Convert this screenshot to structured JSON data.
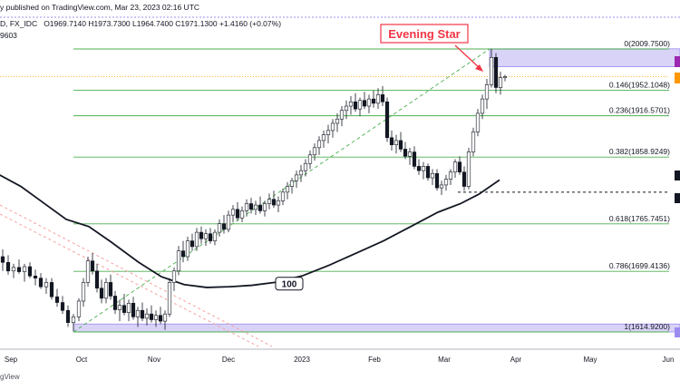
{
  "header": {
    "published": "y published on TradingView.com, Mar 23, 2023 02:16 UTC",
    "symbol": "D, FX_IDC",
    "ohlc": "O1969.7140  H1973.7300  L1964.7400  C1971.1300  +1.4160 (+0.07%)",
    "sub_value": "9603"
  },
  "footer": {
    "brand": "gView"
  },
  "annotations": {
    "pattern_label": "Evening Star",
    "ma_label": "100"
  },
  "colors": {
    "up": "#26a69a",
    "down": "#ef5350",
    "candle_body_up": "#ffffff",
    "candle_outline": "#131722",
    "fib_line": "#4caf50",
    "zone_fill": "#d9d3f7",
    "zone_edge": "#9c8cf0",
    "label_red": "#f23645",
    "ma": "#131722",
    "trend_red": "#f7a1a1"
  },
  "chart_data": {
    "type": "candlestick",
    "title": "",
    "xlabel": "",
    "ylabel": "",
    "x_ticks": [
      "Sep",
      "Oct",
      "Nov",
      "Dec",
      "2023",
      "Feb",
      "Mar",
      "Apr",
      "May",
      "Jun"
    ],
    "ylim": [
      1595,
      2025
    ],
    "fib_levels": [
      {
        "label": "0(2009.7500)",
        "value": 2009.75
      },
      {
        "label": "0.146(1952.1048)",
        "value": 1952.1048
      },
      {
        "label": "0.236(1916.5701)",
        "value": 1916.5701
      },
      {
        "label": "0.382(1858.9249)",
        "value": 1858.9249
      },
      {
        "label": "0.618(1765.7451)",
        "value": 1765.7451
      },
      {
        "label": "0.786(1699.4136)",
        "value": 1699.4136
      },
      {
        "label": "1(1614.9200)",
        "value": 1614.92
      }
    ],
    "support_level": 1810,
    "resistance_zone": [
      1985,
      2010
    ],
    "support_zone": [
      1614.92,
      1626
    ],
    "sma_100": [
      [
        -5,
        1835
      ],
      [
        20,
        1818
      ],
      [
        45,
        1795
      ],
      [
        70,
        1772
      ],
      [
        95,
        1762
      ],
      [
        120,
        1740
      ],
      [
        150,
        1712
      ],
      [
        175,
        1692
      ],
      [
        200,
        1681
      ],
      [
        225,
        1677
      ],
      [
        250,
        1678
      ],
      [
        275,
        1680
      ],
      [
        300,
        1684
      ],
      [
        330,
        1693
      ],
      [
        360,
        1708
      ],
      [
        390,
        1725
      ],
      [
        420,
        1742
      ],
      [
        450,
        1762
      ],
      [
        480,
        1782
      ],
      [
        505,
        1794
      ],
      [
        525,
        1807
      ],
      [
        548,
        1827
      ]
    ],
    "candles": [
      {
        "x": 0,
        "o": 1720,
        "h": 1730,
        "l": 1700,
        "c": 1712
      },
      {
        "x": 6,
        "o": 1712,
        "h": 1722,
        "l": 1695,
        "c": 1700
      },
      {
        "x": 12,
        "o": 1700,
        "h": 1710,
        "l": 1690,
        "c": 1705
      },
      {
        "x": 18,
        "o": 1705,
        "h": 1716,
        "l": 1696,
        "c": 1699
      },
      {
        "x": 24,
        "o": 1699,
        "h": 1710,
        "l": 1685,
        "c": 1706
      },
      {
        "x": 30,
        "o": 1706,
        "h": 1712,
        "l": 1690,
        "c": 1693
      },
      {
        "x": 36,
        "o": 1693,
        "h": 1702,
        "l": 1680,
        "c": 1690
      },
      {
        "x": 42,
        "o": 1690,
        "h": 1697,
        "l": 1675,
        "c": 1678
      },
      {
        "x": 48,
        "o": 1678,
        "h": 1690,
        "l": 1668,
        "c": 1684
      },
      {
        "x": 54,
        "o": 1684,
        "h": 1690,
        "l": 1660,
        "c": 1664
      },
      {
        "x": 60,
        "o": 1664,
        "h": 1675,
        "l": 1650,
        "c": 1656
      },
      {
        "x": 66,
        "o": 1656,
        "h": 1665,
        "l": 1640,
        "c": 1645
      },
      {
        "x": 72,
        "o": 1645,
        "h": 1652,
        "l": 1622,
        "c": 1628
      },
      {
        "x": 78,
        "o": 1628,
        "h": 1640,
        "l": 1616,
        "c": 1636
      },
      {
        "x": 84,
        "o": 1636,
        "h": 1662,
        "l": 1630,
        "c": 1658
      },
      {
        "x": 89,
        "o": 1658,
        "h": 1690,
        "l": 1650,
        "c": 1684
      },
      {
        "x": 94,
        "o": 1684,
        "h": 1720,
        "l": 1678,
        "c": 1714
      },
      {
        "x": 99,
        "o": 1714,
        "h": 1725,
        "l": 1695,
        "c": 1700
      },
      {
        "x": 104,
        "o": 1700,
        "h": 1710,
        "l": 1670,
        "c": 1676
      },
      {
        "x": 109,
        "o": 1676,
        "h": 1688,
        "l": 1655,
        "c": 1662
      },
      {
        "x": 114,
        "o": 1662,
        "h": 1690,
        "l": 1655,
        "c": 1684
      },
      {
        "x": 119,
        "o": 1684,
        "h": 1695,
        "l": 1660,
        "c": 1665
      },
      {
        "x": 124,
        "o": 1665,
        "h": 1672,
        "l": 1640,
        "c": 1646
      },
      {
        "x": 129,
        "o": 1646,
        "h": 1660,
        "l": 1630,
        "c": 1652
      },
      {
        "x": 134,
        "o": 1652,
        "h": 1668,
        "l": 1638,
        "c": 1642
      },
      {
        "x": 139,
        "o": 1642,
        "h": 1660,
        "l": 1630,
        "c": 1655
      },
      {
        "x": 144,
        "o": 1655,
        "h": 1664,
        "l": 1632,
        "c": 1636
      },
      {
        "x": 149,
        "o": 1636,
        "h": 1650,
        "l": 1622,
        "c": 1645
      },
      {
        "x": 154,
        "o": 1645,
        "h": 1656,
        "l": 1630,
        "c": 1634
      },
      {
        "x": 159,
        "o": 1634,
        "h": 1648,
        "l": 1624,
        "c": 1640
      },
      {
        "x": 164,
        "o": 1640,
        "h": 1652,
        "l": 1628,
        "c": 1632
      },
      {
        "x": 169,
        "o": 1632,
        "h": 1645,
        "l": 1622,
        "c": 1638
      },
      {
        "x": 174,
        "o": 1638,
        "h": 1650,
        "l": 1626,
        "c": 1630
      },
      {
        "x": 179,
        "o": 1630,
        "h": 1645,
        "l": 1618,
        "c": 1640
      },
      {
        "x": 184,
        "o": 1640,
        "h": 1690,
        "l": 1636,
        "c": 1684
      },
      {
        "x": 189,
        "o": 1684,
        "h": 1705,
        "l": 1672,
        "c": 1700
      },
      {
        "x": 194,
        "o": 1700,
        "h": 1735,
        "l": 1694,
        "c": 1728
      },
      {
        "x": 199,
        "o": 1728,
        "h": 1742,
        "l": 1712,
        "c": 1720
      },
      {
        "x": 204,
        "o": 1720,
        "h": 1748,
        "l": 1714,
        "c": 1742
      },
      {
        "x": 209,
        "o": 1742,
        "h": 1752,
        "l": 1728,
        "c": 1734
      },
      {
        "x": 214,
        "o": 1734,
        "h": 1760,
        "l": 1728,
        "c": 1754
      },
      {
        "x": 219,
        "o": 1754,
        "h": 1762,
        "l": 1738,
        "c": 1745
      },
      {
        "x": 224,
        "o": 1745,
        "h": 1758,
        "l": 1735,
        "c": 1752
      },
      {
        "x": 229,
        "o": 1752,
        "h": 1760,
        "l": 1738,
        "c": 1742
      },
      {
        "x": 234,
        "o": 1742,
        "h": 1758,
        "l": 1736,
        "c": 1754
      },
      {
        "x": 239,
        "o": 1754,
        "h": 1772,
        "l": 1748,
        "c": 1766
      },
      {
        "x": 244,
        "o": 1766,
        "h": 1778,
        "l": 1752,
        "c": 1758
      },
      {
        "x": 249,
        "o": 1758,
        "h": 1784,
        "l": 1754,
        "c": 1778
      },
      {
        "x": 254,
        "o": 1778,
        "h": 1792,
        "l": 1768,
        "c": 1786
      },
      {
        "x": 259,
        "o": 1786,
        "h": 1796,
        "l": 1770,
        "c": 1774
      },
      {
        "x": 264,
        "o": 1774,
        "h": 1790,
        "l": 1768,
        "c": 1784
      },
      {
        "x": 269,
        "o": 1784,
        "h": 1800,
        "l": 1776,
        "c": 1794
      },
      {
        "x": 274,
        "o": 1794,
        "h": 1802,
        "l": 1780,
        "c": 1786
      },
      {
        "x": 279,
        "o": 1786,
        "h": 1798,
        "l": 1778,
        "c": 1792
      },
      {
        "x": 284,
        "o": 1792,
        "h": 1804,
        "l": 1780,
        "c": 1784
      },
      {
        "x": 289,
        "o": 1784,
        "h": 1798,
        "l": 1776,
        "c": 1794
      },
      {
        "x": 294,
        "o": 1794,
        "h": 1808,
        "l": 1786,
        "c": 1800
      },
      {
        "x": 299,
        "o": 1800,
        "h": 1812,
        "l": 1788,
        "c": 1792
      },
      {
        "x": 304,
        "o": 1792,
        "h": 1804,
        "l": 1782,
        "c": 1798
      },
      {
        "x": 309,
        "o": 1798,
        "h": 1815,
        "l": 1792,
        "c": 1810
      },
      {
        "x": 314,
        "o": 1810,
        "h": 1824,
        "l": 1800,
        "c": 1818
      },
      {
        "x": 319,
        "o": 1818,
        "h": 1830,
        "l": 1808,
        "c": 1826
      },
      {
        "x": 324,
        "o": 1826,
        "h": 1840,
        "l": 1816,
        "c": 1834
      },
      {
        "x": 329,
        "o": 1834,
        "h": 1848,
        "l": 1824,
        "c": 1840
      },
      {
        "x": 334,
        "o": 1840,
        "h": 1856,
        "l": 1832,
        "c": 1850
      },
      {
        "x": 339,
        "o": 1850,
        "h": 1868,
        "l": 1842,
        "c": 1862
      },
      {
        "x": 344,
        "o": 1862,
        "h": 1878,
        "l": 1854,
        "c": 1872
      },
      {
        "x": 349,
        "o": 1872,
        "h": 1888,
        "l": 1862,
        "c": 1882
      },
      {
        "x": 354,
        "o": 1882,
        "h": 1896,
        "l": 1872,
        "c": 1890
      },
      {
        "x": 359,
        "o": 1890,
        "h": 1904,
        "l": 1878,
        "c": 1896
      },
      {
        "x": 364,
        "o": 1896,
        "h": 1912,
        "l": 1886,
        "c": 1906
      },
      {
        "x": 369,
        "o": 1906,
        "h": 1920,
        "l": 1894,
        "c": 1912
      },
      {
        "x": 374,
        "o": 1912,
        "h": 1930,
        "l": 1902,
        "c": 1924
      },
      {
        "x": 379,
        "o": 1924,
        "h": 1938,
        "l": 1912,
        "c": 1930
      },
      {
        "x": 384,
        "o": 1930,
        "h": 1944,
        "l": 1918,
        "c": 1936
      },
      {
        "x": 389,
        "o": 1936,
        "h": 1948,
        "l": 1922,
        "c": 1926
      },
      {
        "x": 394,
        "o": 1926,
        "h": 1942,
        "l": 1916,
        "c": 1938
      },
      {
        "x": 399,
        "o": 1938,
        "h": 1950,
        "l": 1926,
        "c": 1930
      },
      {
        "x": 404,
        "o": 1930,
        "h": 1946,
        "l": 1920,
        "c": 1940
      },
      {
        "x": 409,
        "o": 1940,
        "h": 1952,
        "l": 1928,
        "c": 1934
      },
      {
        "x": 414,
        "o": 1934,
        "h": 1955,
        "l": 1926,
        "c": 1946
      },
      {
        "x": 419,
        "o": 1946,
        "h": 1958,
        "l": 1930,
        "c": 1936
      },
      {
        "x": 424,
        "o": 1936,
        "h": 1942,
        "l": 1880,
        "c": 1886
      },
      {
        "x": 429,
        "o": 1886,
        "h": 1896,
        "l": 1868,
        "c": 1876
      },
      {
        "x": 434,
        "o": 1876,
        "h": 1890,
        "l": 1864,
        "c": 1882
      },
      {
        "x": 439,
        "o": 1882,
        "h": 1894,
        "l": 1866,
        "c": 1870
      },
      {
        "x": 444,
        "o": 1870,
        "h": 1880,
        "l": 1856,
        "c": 1860
      },
      {
        "x": 449,
        "o": 1860,
        "h": 1872,
        "l": 1848,
        "c": 1866
      },
      {
        "x": 454,
        "o": 1866,
        "h": 1874,
        "l": 1842,
        "c": 1846
      },
      {
        "x": 459,
        "o": 1846,
        "h": 1856,
        "l": 1834,
        "c": 1840
      },
      {
        "x": 464,
        "o": 1840,
        "h": 1852,
        "l": 1828,
        "c": 1846
      },
      {
        "x": 469,
        "o": 1846,
        "h": 1850,
        "l": 1826,
        "c": 1830
      },
      {
        "x": 474,
        "o": 1830,
        "h": 1842,
        "l": 1820,
        "c": 1836
      },
      {
        "x": 479,
        "o": 1836,
        "h": 1842,
        "l": 1812,
        "c": 1816
      },
      {
        "x": 484,
        "o": 1816,
        "h": 1826,
        "l": 1806,
        "c": 1820
      },
      {
        "x": 489,
        "o": 1820,
        "h": 1834,
        "l": 1812,
        "c": 1828
      },
      {
        "x": 494,
        "o": 1828,
        "h": 1842,
        "l": 1820,
        "c": 1838
      },
      {
        "x": 499,
        "o": 1838,
        "h": 1856,
        "l": 1830,
        "c": 1852
      },
      {
        "x": 504,
        "o": 1852,
        "h": 1860,
        "l": 1834,
        "c": 1838
      },
      {
        "x": 509,
        "o": 1838,
        "h": 1846,
        "l": 1812,
        "c": 1818
      },
      {
        "x": 514,
        "o": 1818,
        "h": 1872,
        "l": 1814,
        "c": 1866
      },
      {
        "x": 519,
        "o": 1866,
        "h": 1900,
        "l": 1860,
        "c": 1894
      },
      {
        "x": 524,
        "o": 1894,
        "h": 1926,
        "l": 1888,
        "c": 1920
      },
      {
        "x": 529,
        "o": 1920,
        "h": 1946,
        "l": 1912,
        "c": 1940
      },
      {
        "x": 534,
        "o": 1940,
        "h": 1968,
        "l": 1926,
        "c": 1960
      },
      {
        "x": 539,
        "o": 1960,
        "h": 2009.75,
        "l": 1956,
        "c": 1998
      },
      {
        "x": 544,
        "o": 1998,
        "h": 2004,
        "l": 1948,
        "c": 1956
      },
      {
        "x": 549,
        "o": 1956,
        "h": 1978,
        "l": 1946,
        "c": 1969.714
      },
      {
        "x": 554,
        "o": 1969.714,
        "h": 1973.73,
        "l": 1964.74,
        "c": 1971.13
      }
    ]
  }
}
